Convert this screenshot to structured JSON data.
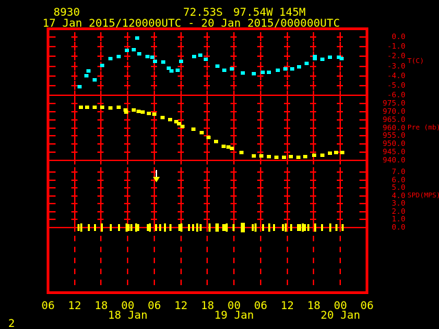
{
  "header": {
    "station_id": "8930",
    "latitude": "72.53S",
    "longitude": "97.54W",
    "elevation": "145M",
    "period": "17 Jan 2015/120000UTC - 20 Jan 2015/000000UTC"
  },
  "page_number": "2",
  "colors": {
    "background": "#000000",
    "grid": "#ff0000",
    "axis_text": "#ff0000",
    "header_text": "#ffff00",
    "temperature_points": "#00ffff",
    "pressure_points": "#ffff00",
    "wind_bars": "#ffff00",
    "arrow": "#ffffff"
  },
  "chart_data": {
    "type": "scatter",
    "title": "Meteorological time-series: temperature, pressure, wind speed",
    "x_axis": {
      "span_hours": 72,
      "start": "17 Jan 2015 06UTC",
      "tick_interval_hours": 6,
      "tick_labels": [
        "06",
        "12",
        "18",
        "00",
        "06",
        "12",
        "18",
        "00",
        "06",
        "12",
        "18",
        "00",
        "06"
      ],
      "date_labels": [
        {
          "label": "18 Jan",
          "hour": 18
        },
        {
          "label": "19 Jan",
          "hour": 42
        },
        {
          "label": "20 Jan",
          "hour": 66
        }
      ]
    },
    "panels": [
      {
        "name": "temperature",
        "axis_label": "T(C)",
        "tick_labels": [
          "0.0",
          "-1.0",
          "-2.0",
          "-3.0",
          "-4.0",
          "-5.0",
          "-6.0"
        ],
        "value_top": 0,
        "value_bottom": -6,
        "series": [
          [
            7.2,
            -5.1
          ],
          [
            8.6,
            -4.0
          ],
          [
            9.1,
            -3.5
          ],
          [
            10.6,
            -4.4
          ],
          [
            12.3,
            -2.9
          ],
          [
            14.1,
            -2.2
          ],
          [
            16.0,
            -2.0
          ],
          [
            17.8,
            -1.4
          ],
          [
            19.4,
            -1.3
          ],
          [
            20.1,
            -0.1
          ],
          [
            20.6,
            -1.7
          ],
          [
            22.4,
            -2.0
          ],
          [
            23.5,
            -2.1
          ],
          [
            24.1,
            -2.5
          ],
          [
            26.0,
            -2.6
          ],
          [
            27.2,
            -3.2
          ],
          [
            27.8,
            -3.5
          ],
          [
            29.3,
            -3.4
          ],
          [
            30.0,
            -2.5
          ],
          [
            33.0,
            -2.0
          ],
          [
            34.3,
            -1.9
          ],
          [
            35.6,
            -2.3
          ],
          [
            38.3,
            -3.0
          ],
          [
            39.8,
            -3.4
          ],
          [
            41.5,
            -3.3
          ],
          [
            43.9,
            -3.7
          ],
          [
            46.5,
            -3.8
          ],
          [
            48.5,
            -3.6
          ],
          [
            49.8,
            -3.6
          ],
          [
            51.8,
            -3.4
          ],
          [
            53.5,
            -3.3
          ],
          [
            55.1,
            -3.3
          ],
          [
            56.7,
            -3.1
          ],
          [
            58.4,
            -2.7
          ],
          [
            60.2,
            -2.0
          ],
          [
            60.3,
            -2.2
          ],
          [
            61.9,
            -2.3
          ],
          [
            63.7,
            -2.1
          ],
          [
            65.6,
            -2.1
          ],
          [
            66.2,
            -2.2
          ]
        ]
      },
      {
        "name": "pressure",
        "axis_label": "Pre (mb)",
        "tick_labels": [
          "975.0",
          "970.0",
          "965.0",
          "960.0",
          "955.0",
          "950.0",
          "945.0",
          "940.0"
        ],
        "value_top": 975,
        "value_bottom": 940,
        "series": [
          [
            7.4,
            972.5
          ],
          [
            8.9,
            972.5
          ],
          [
            10.6,
            972.5
          ],
          [
            12.3,
            972.5
          ],
          [
            14.1,
            972.2
          ],
          [
            16.0,
            972.5
          ],
          [
            17.5,
            970.8
          ],
          [
            17.6,
            969.6
          ],
          [
            19.4,
            970.8
          ],
          [
            20.4,
            970.0
          ],
          [
            21.4,
            969.8
          ],
          [
            22.7,
            968.9
          ],
          [
            24.0,
            968.3
          ],
          [
            25.8,
            966.5
          ],
          [
            27.5,
            965.3
          ],
          [
            29.0,
            963.8
          ],
          [
            29.5,
            962.5
          ],
          [
            30.3,
            960.8
          ],
          [
            32.9,
            959.0
          ],
          [
            34.7,
            956.9
          ],
          [
            36.3,
            954.2
          ],
          [
            37.9,
            951.7
          ],
          [
            39.6,
            948.8
          ],
          [
            40.7,
            948.3
          ],
          [
            41.5,
            947.5
          ],
          [
            43.6,
            945.0
          ],
          [
            46.5,
            942.9
          ],
          [
            48.2,
            942.9
          ],
          [
            49.8,
            942.5
          ],
          [
            51.6,
            942.1
          ],
          [
            53.3,
            942.1
          ],
          [
            54.8,
            942.5
          ],
          [
            56.5,
            942.1
          ],
          [
            58.1,
            942.5
          ],
          [
            60.1,
            943.3
          ],
          [
            61.9,
            943.3
          ],
          [
            63.6,
            944.6
          ],
          [
            65.1,
            945.0
          ],
          [
            66.5,
            945.0
          ]
        ]
      },
      {
        "name": "wind_speed",
        "axis_label": "SPD(MPS)",
        "tick_labels": [
          "7.0",
          "6.0",
          "5.0",
          "4.0",
          "3.0",
          "2.0",
          "1.0",
          "0.0"
        ],
        "value_top": 7,
        "value_bottom": 0,
        "bars": [
          [
            6.8,
            0.45
          ],
          [
            7.5,
            0.5
          ],
          [
            9.1,
            0.4
          ],
          [
            10.6,
            0.45
          ],
          [
            12.1,
            0.5
          ],
          [
            14.1,
            0.4
          ],
          [
            16.0,
            0.45
          ],
          [
            17.7,
            0.5
          ],
          [
            18.1,
            0.4
          ],
          [
            18.7,
            0.45
          ],
          [
            19.8,
            0.55
          ],
          [
            20.3,
            0.4
          ],
          [
            22.4,
            0.45
          ],
          [
            22.9,
            0.5
          ],
          [
            24.3,
            0.4
          ],
          [
            25.3,
            0.45
          ],
          [
            26.4,
            0.5
          ],
          [
            27.6,
            0.4
          ],
          [
            29.6,
            0.45
          ],
          [
            30.0,
            0.5
          ],
          [
            31.8,
            0.4
          ],
          [
            32.7,
            0.45
          ],
          [
            33.6,
            0.5
          ],
          [
            34.3,
            0.45
          ],
          [
            36.4,
            0.5
          ],
          [
            37.9,
            0.55
          ],
          [
            38.3,
            0.55
          ],
          [
            39.5,
            0.4
          ],
          [
            39.8,
            0.45
          ],
          [
            40.2,
            0.5
          ],
          [
            41.8,
            0.45
          ],
          [
            43.6,
            0.6
          ],
          [
            44.2,
            0.6
          ],
          [
            46.1,
            0.45
          ],
          [
            46.8,
            0.5
          ],
          [
            48.4,
            0.45
          ],
          [
            49.9,
            0.5
          ],
          [
            51.0,
            0.4
          ],
          [
            53.0,
            0.45
          ],
          [
            53.6,
            0.5
          ],
          [
            54.8,
            0.45
          ],
          [
            56.4,
            0.4
          ],
          [
            56.8,
            0.45
          ],
          [
            57.5,
            0.5
          ],
          [
            57.9,
            0.4
          ],
          [
            58.7,
            0.45
          ],
          [
            60.2,
            0.5
          ],
          [
            61.8,
            0.45
          ],
          [
            63.6,
            0.5
          ],
          [
            65.1,
            0.45
          ],
          [
            66.4,
            0.4
          ]
        ],
        "down_arrow_annotation": {
          "hour": 24.5,
          "top_mps": 7.3,
          "tip_mps": 5.8
        }
      }
    ]
  }
}
